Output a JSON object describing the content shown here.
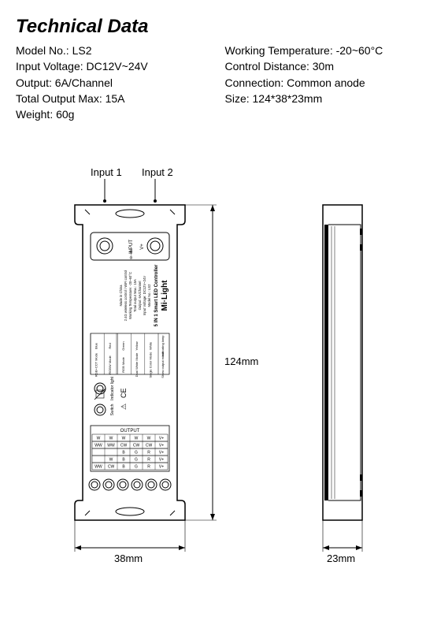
{
  "title": "Technical Data",
  "specs_left": [
    {
      "label": "Model No.",
      "value": "LS2"
    },
    {
      "label": "Input Voltage",
      "value": "DC12V~24V"
    },
    {
      "label": "Output",
      "value": "6A/Channel"
    },
    {
      "label": "Total Output Max",
      "value": "15A"
    },
    {
      "label": "Weight",
      "value": "60g"
    }
  ],
  "specs_right": [
    {
      "label": "Working Temperature",
      "value": "-20~60°C"
    },
    {
      "label": "Control Distance",
      "value": "30m"
    },
    {
      "label": "Connection",
      "value": "Common anode"
    },
    {
      "label": "Size",
      "value": "124*38*23mm"
    }
  ],
  "diagram": {
    "input1_label": "Input 1",
    "input2_label": "Input 2",
    "dim_height": "124mm",
    "dim_width": "38mm",
    "dim_depth": "23mm",
    "device_brand": "Mi·Light",
    "device_title": "5 IN 1 Smart LED Controller",
    "device_lines": [
      "Model No.: LS2",
      "Input Voltage: DC12V~24V",
      "Output: 6A/Channel",
      "Total output Max.: 15A",
      "Working Temperature: -20~60°C",
      "2.4G wireless control / WiFi control",
      "Made in China"
    ],
    "table_header1": "Indicating lamp",
    "table_header2": "Show output mode",
    "table_rows": [
      [
        "White",
        "Single Color Mode"
      ],
      [
        "Yellow",
        "Dual White Mode"
      ],
      [
        "Green",
        "RGB Mode"
      ],
      [
        "Red",
        "RGBW Mode"
      ],
      [
        "Blue",
        "RGB+CCT Mode"
      ]
    ],
    "indicator_label": "Indicator light",
    "switch_label": "Switch",
    "input_label": "INPUT",
    "v_plus": "V+",
    "output_label": "OUTPUT",
    "output_rows": [
      [
        "W",
        "W",
        "W",
        "W",
        "W",
        "V+"
      ],
      [
        "WW",
        "WW",
        "CW",
        "CW",
        "CW",
        "V+"
      ],
      [
        "",
        "",
        "B",
        "G",
        "R",
        "V+"
      ],
      [
        "",
        "W",
        "B",
        "G",
        "R",
        "V+"
      ],
      [
        "WW",
        "CW",
        "B",
        "G",
        "R",
        "V+"
      ]
    ],
    "stroke": "#000000",
    "fill": "#ffffff"
  }
}
